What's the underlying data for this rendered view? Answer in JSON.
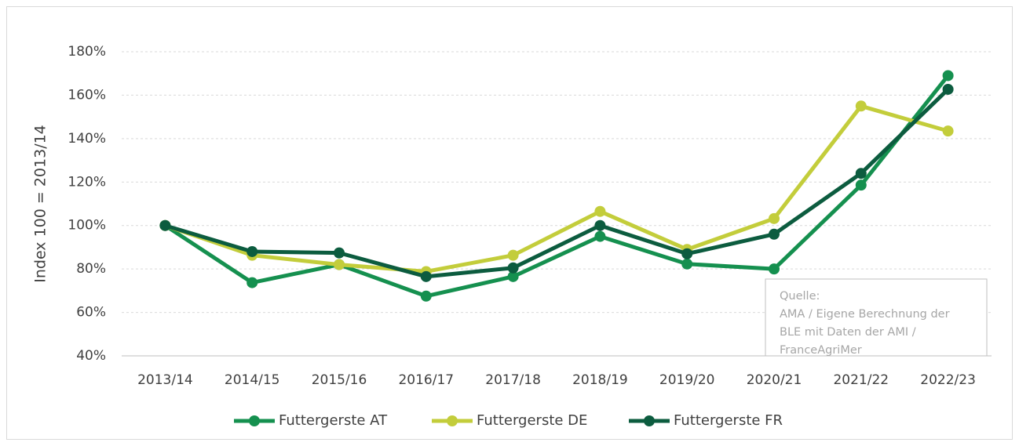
{
  "chart_data": {
    "type": "line",
    "y_label": "Index 100 = 2013/14",
    "categories": [
      "2013/14",
      "2014/15",
      "2015/16",
      "2016/17",
      "2017/18",
      "2018/19",
      "2019/20",
      "2020/21",
      "2021/22",
      "2022/23"
    ],
    "series": [
      {
        "name": "Futtergerste AT",
        "color": "#15904f",
        "values": [
          100,
          73.7,
          82,
          67.5,
          76.5,
          95,
          82.3,
          80,
          118.6,
          169
        ]
      },
      {
        "name": "Futtergerste DE",
        "color": "#c3cd3b",
        "values": [
          100,
          86.3,
          82,
          78.8,
          86.3,
          106.5,
          89,
          103.2,
          155,
          143.5
        ]
      },
      {
        "name": "Futtergerste FR",
        "color": "#0c5c3f",
        "values": [
          100,
          88,
          87.4,
          76.5,
          80.5,
          100,
          87,
          96,
          124,
          162.7
        ]
      }
    ],
    "ylim": [
      40,
      180
    ],
    "yticks": [
      {
        "value": 40,
        "label": "40%"
      },
      {
        "value": 60,
        "label": "60%"
      },
      {
        "value": 80,
        "label": "80%"
      },
      {
        "value": 100,
        "label": "100%"
      },
      {
        "value": 120,
        "label": "120%"
      },
      {
        "value": 140,
        "label": "140%"
      },
      {
        "value": 160,
        "label": "160%"
      },
      {
        "value": 180,
        "label": "180%"
      }
    ],
    "grid": true,
    "legend": "bottom",
    "annotation": [
      "Quelle:",
      "AMA / Eigene Berechnung der",
      "BLE mit Daten der AMI /",
      "FranceAgriMer"
    ]
  }
}
